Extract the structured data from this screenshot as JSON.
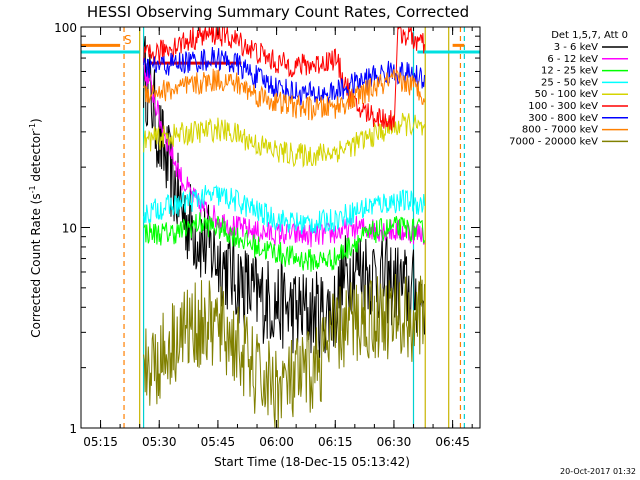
{
  "chart_data": {
    "type": "line",
    "title": "HESSI Observing Summary Count Rates, Corrected",
    "xlabel": "Start Time (18-Dec-15 05:13:42)",
    "ylabel": "Corrected Count Rate (s",
    "ylabel_sup1": "-1",
    "ylabel_mid": " detector",
    "ylabel_sup2": "-1",
    "ylabel_end": ")",
    "yscale": "log",
    "ylim": [
      1,
      100
    ],
    "xlim": [
      "05:10",
      "06:52"
    ],
    "x_ticks": [
      "05:15",
      "05:30",
      "05:45",
      "06:00",
      "06:15",
      "06:30",
      "06:45"
    ],
    "y_ticks": [
      "1",
      "10",
      "100"
    ],
    "legend_header": "Det 1,5,7, Att 0",
    "flag_label": "S",
    "footer": "20-Oct-2017 01:32",
    "markers": [
      {
        "time": "05:21",
        "color": "#ff7f00",
        "style": "dashed"
      },
      {
        "time": "05:25",
        "color": "#c8b400",
        "style": "solid"
      },
      {
        "time": "05:26",
        "color": "#00d0d0",
        "style": "solid"
      },
      {
        "time": "06:35",
        "color": "#00d0d0",
        "style": "solid"
      },
      {
        "time": "06:38",
        "color": "#c8b400",
        "style": "solid"
      },
      {
        "time": "06:44",
        "color": "#c8b400",
        "style": "solid"
      },
      {
        "time": "06:47",
        "color": "#ff7f00",
        "style": "dashed"
      },
      {
        "time": "06:48",
        "color": "#00d0d0",
        "style": "dashed"
      }
    ],
    "bars": [
      {
        "start": "05:10",
        "end": "05:20",
        "value": 81,
        "color": "#ff7f00"
      },
      {
        "start": "06:45",
        "end": "06:48",
        "value": 81,
        "color": "#ff7f00"
      },
      {
        "start": "05:10",
        "end": "05:25",
        "value": 75,
        "color": "#00e0e0"
      },
      {
        "start": "06:36",
        "end": "06:52",
        "value": 75,
        "color": "#00e0e0"
      },
      {
        "start": "05:27",
        "end": "05:51",
        "value": 66,
        "color": "#e00000"
      }
    ],
    "series": [
      {
        "name": "3 - 6 keV",
        "color": "#000000",
        "points": [
          [
            "05:26",
            60
          ],
          [
            "05:28",
            45
          ],
          [
            "05:30",
            28
          ],
          [
            "05:33",
            18
          ],
          [
            "05:36",
            12
          ],
          [
            "05:40",
            9
          ],
          [
            "05:45",
            7
          ],
          [
            "05:50",
            5.5
          ],
          [
            "05:55",
            4.5
          ],
          [
            "06:00",
            4.2
          ],
          [
            "06:05",
            3.8
          ],
          [
            "06:10",
            3.7
          ],
          [
            "06:15",
            3.9
          ],
          [
            "06:17",
            5.5
          ],
          [
            "06:20",
            6.5
          ],
          [
            "06:25",
            5.8
          ],
          [
            "06:30",
            5.2
          ],
          [
            "06:34",
            4.8
          ],
          [
            "06:38",
            4.6
          ]
        ]
      },
      {
        "name": "6 - 12 keV",
        "color": "#ff00ff",
        "points": [
          [
            "05:26",
            62
          ],
          [
            "05:28",
            50
          ],
          [
            "05:30",
            35
          ],
          [
            "05:33",
            24
          ],
          [
            "05:36",
            17
          ],
          [
            "05:40",
            13
          ],
          [
            "05:45",
            11
          ],
          [
            "05:50",
            10
          ],
          [
            "05:55",
            9.5
          ],
          [
            "06:00",
            9.3
          ],
          [
            "06:05",
            9.2
          ],
          [
            "06:10",
            9.1
          ],
          [
            "06:15",
            9.4
          ],
          [
            "06:20",
            10
          ],
          [
            "06:25",
            9.8
          ],
          [
            "06:30",
            9.6
          ],
          [
            "06:34",
            9.5
          ],
          [
            "06:38",
            9.3
          ]
        ]
      },
      {
        "name": "12 - 25 keV",
        "color": "#00ff00",
        "points": [
          [
            "05:26",
            9.5
          ],
          [
            "05:30",
            9.3
          ],
          [
            "05:35",
            9.5
          ],
          [
            "05:40",
            10.5
          ],
          [
            "05:45",
            10
          ],
          [
            "05:50",
            9
          ],
          [
            "05:55",
            8
          ],
          [
            "06:00",
            7.5
          ],
          [
            "06:05",
            7
          ],
          [
            "06:10",
            6.8
          ],
          [
            "06:15",
            7
          ],
          [
            "06:20",
            8.5
          ],
          [
            "06:25",
            9.5
          ],
          [
            "06:30",
            10
          ],
          [
            "06:34",
            9.8
          ],
          [
            "06:38",
            9.5
          ]
        ]
      },
      {
        "name": "25 - 50 keV",
        "color": "#00ffff",
        "points": [
          [
            "05:26",
            11.5
          ],
          [
            "05:30",
            12.5
          ],
          [
            "05:35",
            13
          ],
          [
            "05:40",
            14
          ],
          [
            "05:45",
            14.5
          ],
          [
            "05:50",
            13.5
          ],
          [
            "05:55",
            12
          ],
          [
            "06:00",
            11
          ],
          [
            "06:05",
            10.5
          ],
          [
            "06:10",
            10.5
          ],
          [
            "06:15",
            11
          ],
          [
            "06:20",
            12
          ],
          [
            "06:25",
            13
          ],
          [
            "06:30",
            13.5
          ],
          [
            "06:34",
            13.5
          ],
          [
            "06:38",
            13
          ]
        ]
      },
      {
        "name": "50 - 100 keV",
        "color": "#d4d400",
        "points": [
          [
            "05:26",
            27
          ],
          [
            "05:30",
            28
          ],
          [
            "05:35",
            29
          ],
          [
            "05:40",
            30
          ],
          [
            "05:45",
            31
          ],
          [
            "05:50",
            29
          ],
          [
            "05:55",
            26
          ],
          [
            "06:00",
            24
          ],
          [
            "06:05",
            23
          ],
          [
            "06:10",
            23
          ],
          [
            "06:15",
            24
          ],
          [
            "06:20",
            26
          ],
          [
            "06:25",
            29
          ],
          [
            "06:30",
            32
          ],
          [
            "06:34",
            33
          ],
          [
            "06:38",
            30
          ]
        ]
      },
      {
        "name": "100 - 300 keV",
        "color": "#ff0000",
        "points": [
          [
            "05:26",
            70
          ],
          [
            "05:30",
            75
          ],
          [
            "05:35",
            82
          ],
          [
            "05:40",
            90
          ],
          [
            "05:45",
            93
          ],
          [
            "05:50",
            85
          ],
          [
            "05:55",
            75
          ],
          [
            "06:00",
            66
          ],
          [
            "06:05",
            64
          ],
          [
            "06:10",
            65
          ],
          [
            "06:15",
            70
          ],
          [
            "06:20",
            40
          ],
          [
            "06:25",
            36
          ],
          [
            "06:30",
            34
          ],
          [
            "06:31",
            95
          ],
          [
            "06:34",
            90
          ],
          [
            "06:38",
            80
          ]
        ]
      },
      {
        "name": "300 - 800 keV",
        "color": "#0000ff",
        "points": [
          [
            "05:26",
            62
          ],
          [
            "05:30",
            64
          ],
          [
            "05:35",
            66
          ],
          [
            "05:40",
            68
          ],
          [
            "05:45",
            70
          ],
          [
            "05:50",
            65
          ],
          [
            "05:55",
            56
          ],
          [
            "06:00",
            50
          ],
          [
            "06:05",
            47
          ],
          [
            "06:10",
            46
          ],
          [
            "06:15",
            47
          ],
          [
            "06:20",
            52
          ],
          [
            "06:25",
            57
          ],
          [
            "06:30",
            60
          ],
          [
            "06:34",
            58
          ],
          [
            "06:38",
            55
          ]
        ]
      },
      {
        "name": "800 - 7000 keV",
        "color": "#ff8000",
        "points": [
          [
            "05:26",
            47
          ],
          [
            "05:30",
            48
          ],
          [
            "05:35",
            49
          ],
          [
            "05:40",
            52
          ],
          [
            "05:45",
            55
          ],
          [
            "05:50",
            52
          ],
          [
            "05:55",
            46
          ],
          [
            "06:00",
            42
          ],
          [
            "06:05",
            40
          ],
          [
            "06:10",
            39
          ],
          [
            "06:15",
            40
          ],
          [
            "06:20",
            44
          ],
          [
            "06:25",
            50
          ],
          [
            "06:30",
            54
          ],
          [
            "06:34",
            52
          ],
          [
            "06:38",
            46
          ]
        ]
      },
      {
        "name": "7000 - 20000 keV",
        "color": "#808000",
        "points": [
          [
            "05:26",
            2.0
          ],
          [
            "05:30",
            2.2
          ],
          [
            "05:35",
            3.0
          ],
          [
            "05:40",
            3.3
          ],
          [
            "05:45",
            3.2
          ],
          [
            "05:50",
            2.6
          ],
          [
            "05:55",
            1.8
          ],
          [
            "06:00",
            1.6
          ],
          [
            "06:05",
            1.7
          ],
          [
            "06:10",
            2.0
          ],
          [
            "06:15",
            3.0
          ],
          [
            "06:20",
            3.4
          ],
          [
            "06:25",
            3.6
          ],
          [
            "06:30",
            3.6
          ],
          [
            "06:34",
            3.5
          ],
          [
            "06:38",
            3.4
          ]
        ]
      }
    ]
  }
}
